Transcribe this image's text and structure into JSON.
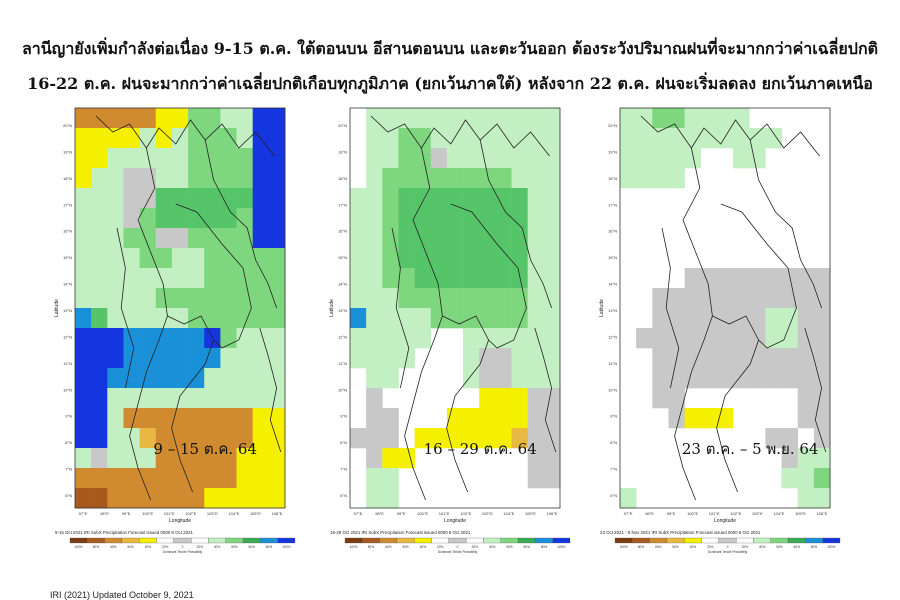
{
  "headlines": [
    "ลานีญายังเพิ่มกำลังต่อเนื่อง 9-15 ต.ค. ใต้ตอนบน อีสานตอนบน และตะวันออก ต้องระวังปริมาณฝนที่จะมากกว่าค่าเฉลี่ยปกติ",
    "16-22 ต.ค. ฝนจะมากกว่าค่าเฉลี่ยปกติเกือบทุกภูมิภาค (ยกเว้นภาคใต้) หลังจาก 22 ต.ค. ฝนจะเริ่มลดลง ยกเว้นภาคเหนือ"
  ],
  "axes": {
    "lon_ticks": [
      "97°E",
      "98°E",
      "99°E",
      "100°E",
      "101°E",
      "102°E",
      "103°E",
      "104°E",
      "105°E",
      "106°E"
    ],
    "lat_ticks": [
      "20°N",
      "19°N",
      "18°N",
      "17°N",
      "16°N",
      "15°N",
      "14°N",
      "13°N",
      "12°N",
      "11°N",
      "10°N",
      "9°N",
      "8°N",
      "7°N",
      "6°N"
    ],
    "xlabel": "Longitude",
    "ylabel": "Latitude"
  },
  "colorbar": {
    "ticks": [
      "100%",
      "80%",
      "60%",
      "50%",
      "40%",
      "20%",
      "0",
      "20%",
      "40%",
      "50%",
      "60%",
      "80%",
      "100%"
    ],
    "caption": "Dominant Tercile Probability",
    "colors": [
      "#7a3c10",
      "#a85a1e",
      "#d08a30",
      "#e8b840",
      "#f5f000",
      "#ffffff",
      "#c8c8c8",
      "#ffffff",
      "#c2f0c2",
      "#7ed77e",
      "#3aaa55",
      "#1a90d8",
      "#1535e0"
    ]
  },
  "palette": {
    "B60": "#a85a1e",
    "B50": "#d08a30",
    "B45": "#e8b840",
    "B40": "#f5f000",
    "N": "#c8c8c8",
    "A40": "#c2f0c2",
    "A45": "#a0e8a0",
    "A50": "#7ed77e",
    "A55": "#56c56a",
    "A60": "#3aaa55",
    "A70": "#1a90d8",
    "A80": "#1535e0",
    "blank": "#ffffff"
  },
  "maps": [
    {
      "title": "9-15 Oct 2021  IRI SubX Precipitation Forecast  issued 0000 8 Oct 2021",
      "label": "9 – 15 ต.ค. 64",
      "grid": [
        "B50 B50 B50 B50 B50 B40 B40 A50 A50 A40 A40 A80 A80",
        "B40 B40 B40 B40 A40 B40 A40 A50 A50 A50 A40 A80 A80",
        "B40 B40 A40 A40 A40 A40 A40 A50 A50 A50 A50 A80 A80",
        "B40 A40 A40 N N A40 A40 A50 A50 A50 A50 A80 A80",
        "A40 A40 A40 N N A55 A55 A55 A55 A55 A55 A80 A80",
        "A40 A40 A40 N A50 A55 A55 A55 A55 A55 A50 A80 A80",
        "A40 A40 A40 A50 A50 N N A50 A50 A50 A50 A80 A80",
        "A40 A40 A40 A40 A50 A50 A40 A40 A50 A50 A50 A50 A50",
        "A40 A40 A40 A40 A40 A40 A40 A40 A50 A50 A50 A50 A50",
        "A40 A40 A40 A40 A40 A50 A50 A50 A50 A50 A50 A50 A50",
        "A70 A55 A40 A40 A40 A40 A40 A50 A50 A50 A50 A50 A50",
        "A80 A80 A80 A70 A70 A70 A70 A70 A80 A50 A40 A40 A40",
        "A80 A80 A80 A70 A70 A70 A70 A70 A70 A40 A40 A40 A40",
        "A80 A80 A70 A70 A70 A70 A70 A70 A40 A40 A40 A40 A40",
        "A80 A80 A40 A40 A40 A40 A40 A40 A40 A40 A40 A40 A40",
        "A80 A80 A40 B50 B50 B50 B50 B50 B50 B50 B50 B40 B40",
        "A80 A80 A40 A40 B45 B50 B50 B50 B50 B50 B50 B40 B40",
        "A40 N A40 A40 A40 B50 B50 B50 B50 B50 B40 B40 B40",
        "B50 B50 B50 B50 B50 B50 B50 B50 B50 B50 B40 B40 B40",
        "B60 B60 B50 B50 B50 B50 B50 B50 B40 B40 B40 B40 B40"
      ]
    },
    {
      "title": "16-29 Oct 2021  IRI SubX Precipitation Forecast  issued 0000 8 Oct 2021",
      "label": "16 – 29 ต.ค. 64",
      "grid": [
        "blank A40 A40 A40 A40 A40 A40 A40 A40 A40 A40 A40 A40",
        "blank A40 A40 A50 A50 A40 A40 A40 A40 A40 A40 A40 A40",
        "blank A40 A40 A50 A50 N A40 A40 A40 A40 A40 A40 A40",
        "blank A40 A50 A50 A50 A50 A50 A50 A50 A50 A40 A40 A40",
        "A40 A40 A50 A55 A55 A55 A55 A55 A55 A55 A55 A40 A40",
        "A40 A40 A50 A55 A55 A55 A55 A55 A55 A55 A55 A40 A40",
        "A40 A40 A50 A55 A55 A55 A55 A55 A55 A55 A55 A40 A40",
        "A40 A40 A50 A55 A55 A55 A55 A55 A55 A55 A55 A40 A40",
        "A40 A40 A50 A50 A55 A55 A55 A55 A55 A55 A55 A40 A40",
        "A40 A40 A40 A50 A50 A50 A50 A50 A50 A50 A50 A40 A40",
        "A70 A40 A40 A40 A40 A50 A50 A50 A50 A50 A50 A40 A40",
        "A40 A40 A40 A40 A40 blank blank A40 A40 A40 A40 A40 A40",
        "A40 A40 A40 A40 blank blank blank A40 N N A40 A40 A40",
        "blank A40 A40 blank blank blank blank A40 N N A40 A40 A40",
        "blank N blank blank blank blank blank blank B40 B40 B40 N N",
        "blank N N blank blank blank B40 B40 B40 B40 B40 N N",
        "N N N blank B40 B40 B40 B40 B40 B40 B45 N N",
        "blank N B40 B40 blank blank blank blank blank blank blank N N",
        "blank A40 A40 blank blank blank blank blank blank blank blank N N",
        "blank A40 A40 blank blank blank blank blank blank blank blank blank blank"
      ]
    },
    {
      "title": "23 Oct 2021 - 5 Nov 2021  IRI SubX Precipitation Forecast  issued 0000 8 Oct 2021",
      "label": "23 ต.ค. – 5 พ.ย. 64",
      "grid": [
        "A40 A40 A50 A50 A40 A40 A40 A40 blank blank blank blank blank",
        "A40 A40 A40 A40 A40 A40 A40 A40 A40 A40 blank blank blank",
        "A40 A40 A40 A40 A40 blank blank A40 A40 blank blank blank blank",
        "A40 A40 A40 A40 blank blank blank blank blank blank blank blank blank",
        "blank blank blank blank blank blank blank blank blank blank blank blank blank",
        "blank blank blank blank blank blank blank blank blank blank blank blank blank",
        "blank blank blank blank blank blank blank blank blank blank blank blank blank",
        "blank blank blank blank blank blank blank blank blank blank blank blank blank",
        "blank blank blank blank N N N N N N N N N",
        "blank blank N N N N N N N N N N N",
        "blank blank N N N N N N N A40 A40 N N",
        "blank N N N N N N N N A40 A40 N N",
        "blank blank N N N N N N N N N N N",
        "blank blank N N N N N N N N N N N",
        "blank blank N N blank blank blank blank blank blank blank N N",
        "blank blank blank N B40 B40 B40 blank blank blank blank N N",
        "blank blank blank blank blank blank blank blank blank N N blank N",
        "blank blank blank blank blank blank blank blank blank blank N A40 A40",
        "blank blank blank blank blank blank blank blank blank blank A40 A40 A50",
        "A40 blank blank blank blank blank blank blank blank blank blank A40 A40"
      ]
    }
  ],
  "footer": "IRI (2021) Updated October 9, 2021"
}
